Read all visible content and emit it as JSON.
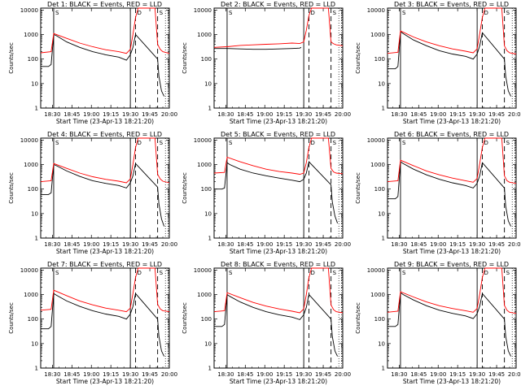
{
  "figure": {
    "title_format": "Det {det}: BLACK = Events, RED = LLD",
    "xlabel": "Start Time (23-Apr-13 18:21:20)",
    "ylabel": "Counts/sec"
  },
  "axes": {
    "x_tick_labels": [
      "18:30",
      "18:45",
      "19:00",
      "19:15",
      "19:30",
      "19:45",
      "20:00"
    ],
    "x_tick_minutes": [
      9,
      24,
      39,
      54,
      69,
      84,
      99
    ],
    "x_range_minutes": [
      0,
      99
    ],
    "y_tick_labels": [
      "1",
      "10",
      "100",
      "1000",
      "10000"
    ],
    "y_tick_values": [
      1,
      10,
      100,
      1000,
      10000
    ],
    "y_range": [
      1,
      12000
    ],
    "y_scale": "log",
    "markers": [
      "S",
      "D",
      "S"
    ]
  },
  "colors": {
    "events": "#000000",
    "lld": "#ff0000",
    "axis": "#000000"
  },
  "chart_data": [
    {
      "type": "line",
      "det": "1",
      "title": "Det 1: BLACK = Events, RED = LLD",
      "xlabel": "Start Time (23-Apr-13 18:21:20)",
      "ylabel": "Counts/sec",
      "x_unit": "minutes after 18:21:20",
      "vlines": [
        {
          "x": 10,
          "style": "solid"
        },
        {
          "x": 69,
          "style": "solid"
        },
        {
          "x": 73,
          "style": "dashed"
        },
        {
          "x": 90,
          "style": "dashed"
        }
      ],
      "series": [
        {
          "name": "Events",
          "color": "#000000",
          "x": [
            0,
            6,
            8,
            10,
            12,
            20,
            30,
            40,
            50,
            60,
            66,
            69,
            71,
            73,
            90,
            91,
            93,
            95
          ],
          "y": [
            50,
            50,
            60,
            1000,
            900,
            500,
            300,
            200,
            150,
            120,
            90,
            150,
            300,
            1000,
            100,
            20,
            5,
            3
          ]
        },
        {
          "name": "LLD",
          "color": "#ff0000",
          "x": [
            0,
            8,
            10,
            20,
            30,
            40,
            50,
            60,
            66,
            69,
            71,
            73,
            75,
            88,
            90,
            92,
            94,
            99
          ],
          "y": [
            180,
            200,
            1100,
            700,
            450,
            320,
            240,
            200,
            170,
            250,
            1000,
            5000,
            12000,
            12000,
            400,
            250,
            200,
            170
          ]
        }
      ]
    },
    {
      "type": "line",
      "det": "2",
      "title": "Det 2: BLACK = Events, RED = LLD",
      "xlabel": "Start Time (23-Apr-13 18:21:20)",
      "ylabel": "Counts/sec",
      "x_unit": "minutes after 18:21:20",
      "vlines": [
        {
          "x": 10,
          "style": "solid"
        },
        {
          "x": 69,
          "style": "solid"
        },
        {
          "x": 73,
          "style": "dashed"
        },
        {
          "x": 90,
          "style": "dashed"
        }
      ],
      "series": [
        {
          "name": "Events",
          "color": "#000000",
          "x": [
            0,
            10,
            20,
            30,
            40,
            50,
            60,
            66,
            67
          ],
          "y": [
            270,
            270,
            260,
            250,
            250,
            260,
            270,
            280,
            300
          ]
        },
        {
          "name": "LLD",
          "color": "#ff0000",
          "x": [
            0,
            10,
            20,
            30,
            40,
            50,
            60,
            66,
            69,
            71,
            73,
            75,
            88,
            90,
            92,
            94,
            99
          ],
          "y": [
            300,
            320,
            360,
            380,
            400,
            420,
            450,
            430,
            500,
            1500,
            6000,
            12000,
            12000,
            500,
            420,
            380,
            350
          ]
        }
      ]
    },
    {
      "type": "line",
      "det": "3",
      "title": "Det 3: BLACK = Events, RED = LLD",
      "xlabel": "Start Time (23-Apr-13 18:21:20)",
      "ylabel": "Counts/sec",
      "x_unit": "minutes after 18:21:20",
      "vlines": [
        {
          "x": 10,
          "style": "solid"
        },
        {
          "x": 69,
          "style": "solid"
        },
        {
          "x": 73,
          "style": "dashed"
        },
        {
          "x": 90,
          "style": "dashed"
        }
      ],
      "series": [
        {
          "name": "Events",
          "color": "#000000",
          "x": [
            0,
            6,
            8,
            10,
            12,
            20,
            30,
            40,
            50,
            60,
            66,
            69,
            71,
            73,
            90,
            91,
            93,
            95
          ],
          "y": [
            40,
            40,
            50,
            1300,
            1100,
            600,
            350,
            220,
            160,
            130,
            100,
            160,
            350,
            1200,
            100,
            20,
            5,
            3
          ]
        },
        {
          "name": "LLD",
          "color": "#ff0000",
          "x": [
            0,
            8,
            10,
            20,
            30,
            40,
            50,
            60,
            66,
            69,
            71,
            73,
            75,
            88,
            90,
            92,
            94,
            99
          ],
          "y": [
            170,
            190,
            1400,
            800,
            500,
            350,
            260,
            210,
            180,
            260,
            1100,
            5000,
            12000,
            12000,
            350,
            220,
            180,
            160
          ]
        }
      ]
    },
    {
      "type": "line",
      "det": "4",
      "title": "Det 4: BLACK = Events, RED = LLD",
      "xlabel": "Start Time (23-Apr-13 18:21:20)",
      "ylabel": "Counts/sec",
      "x_unit": "minutes after 18:21:20",
      "vlines": [
        {
          "x": 10,
          "style": "solid"
        },
        {
          "x": 69,
          "style": "solid"
        },
        {
          "x": 73,
          "style": "dashed"
        },
        {
          "x": 90,
          "style": "dashed"
        }
      ],
      "series": [
        {
          "name": "Events",
          "color": "#000000",
          "x": [
            0,
            6,
            8,
            10,
            12,
            20,
            30,
            40,
            50,
            60,
            66,
            69,
            71,
            73,
            90,
            91,
            93,
            95
          ],
          "y": [
            60,
            60,
            70,
            1000,
            900,
            550,
            330,
            220,
            170,
            140,
            110,
            180,
            350,
            1100,
            120,
            25,
            6,
            3
          ]
        },
        {
          "name": "LLD",
          "color": "#ff0000",
          "x": [
            0,
            8,
            10,
            20,
            30,
            40,
            50,
            60,
            66,
            69,
            71,
            73,
            75,
            88,
            90,
            92,
            94,
            99
          ],
          "y": [
            200,
            220,
            1100,
            700,
            450,
            320,
            250,
            210,
            180,
            260,
            1000,
            5000,
            12000,
            12000,
            400,
            260,
            210,
            180
          ]
        }
      ]
    },
    {
      "type": "line",
      "det": "5",
      "title": "Det 5: BLACK = Events, RED = LLD",
      "xlabel": "Start Time (23-Apr-13 18:21:20)",
      "ylabel": "Counts/sec",
      "x_unit": "minutes after 18:21:20",
      "vlines": [
        {
          "x": 10,
          "style": "solid"
        },
        {
          "x": 69,
          "style": "solid"
        },
        {
          "x": 73,
          "style": "dashed"
        },
        {
          "x": 90,
          "style": "dashed"
        }
      ],
      "series": [
        {
          "name": "Events",
          "color": "#000000",
          "x": [
            0,
            6,
            8,
            10,
            12,
            20,
            30,
            40,
            50,
            60,
            66,
            69,
            71,
            73,
            90,
            91,
            93,
            95
          ],
          "y": [
            100,
            100,
            110,
            1200,
            1000,
            650,
            450,
            350,
            280,
            230,
            200,
            250,
            450,
            1300,
            150,
            30,
            8,
            4
          ]
        },
        {
          "name": "LLD",
          "color": "#ff0000",
          "x": [
            0,
            8,
            10,
            20,
            30,
            40,
            50,
            60,
            66,
            69,
            71,
            73,
            75,
            88,
            90,
            92,
            94,
            99
          ],
          "y": [
            450,
            480,
            2000,
            1300,
            900,
            650,
            520,
            450,
            400,
            450,
            1200,
            5000,
            12000,
            12000,
            700,
            500,
            450,
            420
          ]
        }
      ]
    },
    {
      "type": "line",
      "det": "6",
      "title": "Det 6: BLACK = Events, RED = LLD",
      "xlabel": "Start Time (23-Apr-13 18:21:20)",
      "ylabel": "Counts/sec",
      "x_unit": "minutes after 18:21:20",
      "vlines": [
        {
          "x": 10,
          "style": "solid"
        },
        {
          "x": 69,
          "style": "solid"
        },
        {
          "x": 73,
          "style": "dashed"
        },
        {
          "x": 90,
          "style": "dashed"
        }
      ],
      "series": [
        {
          "name": "Events",
          "color": "#000000",
          "x": [
            0,
            6,
            8,
            10,
            12,
            20,
            30,
            40,
            50,
            60,
            66,
            69,
            71,
            73,
            90,
            91,
            93,
            95
          ],
          "y": [
            40,
            40,
            50,
            1300,
            1100,
            650,
            380,
            250,
            180,
            140,
            110,
            170,
            350,
            1200,
            110,
            20,
            5,
            3
          ]
        },
        {
          "name": "LLD",
          "color": "#ff0000",
          "x": [
            0,
            8,
            10,
            20,
            30,
            40,
            50,
            60,
            66,
            69,
            71,
            73,
            75,
            88,
            90,
            92,
            94,
            99
          ],
          "y": [
            200,
            220,
            1500,
            900,
            550,
            380,
            280,
            220,
            190,
            270,
            1100,
            5000,
            12000,
            12000,
            350,
            220,
            190,
            170
          ]
        }
      ]
    },
    {
      "type": "line",
      "det": "7",
      "title": "Det 7: BLACK = Events, RED = LLD",
      "xlabel": "Start Time (23-Apr-13 18:21:20)",
      "ylabel": "Counts/sec",
      "x_unit": "minutes after 18:21:20",
      "vlines": [
        {
          "x": 10,
          "style": "solid"
        },
        {
          "x": 69,
          "style": "solid"
        },
        {
          "x": 73,
          "style": "dashed"
        },
        {
          "x": 90,
          "style": "dashed"
        }
      ],
      "series": [
        {
          "name": "Events",
          "color": "#000000",
          "x": [
            0,
            6,
            8,
            10,
            12,
            20,
            30,
            40,
            50,
            60,
            66,
            69,
            71,
            73,
            90,
            91,
            93,
            95
          ],
          "y": [
            40,
            40,
            50,
            1100,
            950,
            550,
            330,
            220,
            160,
            130,
            100,
            160,
            330,
            1100,
            100,
            20,
            5,
            3
          ]
        },
        {
          "name": "LLD",
          "color": "#ff0000",
          "x": [
            0,
            8,
            10,
            20,
            30,
            40,
            50,
            60,
            66,
            69,
            71,
            73,
            75,
            88,
            90,
            92,
            94,
            99
          ],
          "y": [
            230,
            250,
            1500,
            900,
            550,
            380,
            280,
            230,
            200,
            280,
            1100,
            5000,
            12000,
            12000,
            400,
            260,
            220,
            200
          ]
        }
      ]
    },
    {
      "type": "line",
      "det": "8",
      "title": "Det 8: BLACK = Events, RED = LLD",
      "xlabel": "Start Time (23-Apr-13 18:21:20)",
      "ylabel": "Counts/sec",
      "x_unit": "minutes after 18:21:20",
      "vlines": [
        {
          "x": 10,
          "style": "solid"
        },
        {
          "x": 69,
          "style": "solid"
        },
        {
          "x": 73,
          "style": "dashed"
        },
        {
          "x": 90,
          "style": "dashed"
        }
      ],
      "series": [
        {
          "name": "Events",
          "color": "#000000",
          "x": [
            0,
            6,
            8,
            10,
            12,
            20,
            30,
            40,
            50,
            60,
            66,
            69,
            71,
            73,
            90,
            91,
            93,
            95
          ],
          "y": [
            50,
            50,
            60,
            1000,
            850,
            500,
            300,
            200,
            150,
            120,
            95,
            150,
            300,
            1000,
            100,
            20,
            5,
            3
          ]
        },
        {
          "name": "LLD",
          "color": "#ff0000",
          "x": [
            0,
            8,
            10,
            20,
            30,
            40,
            50,
            60,
            66,
            69,
            71,
            73,
            75,
            88,
            90,
            92,
            94,
            99
          ],
          "y": [
            200,
            220,
            1200,
            750,
            480,
            340,
            260,
            210,
            180,
            260,
            1000,
            5000,
            12000,
            12000,
            380,
            240,
            200,
            180
          ]
        }
      ]
    },
    {
      "type": "line",
      "det": "9",
      "title": "Det 9: BLACK = Events, RED = LLD",
      "xlabel": "Start Time (23-Apr-13 18:21:20)",
      "ylabel": "Counts/sec",
      "x_unit": "minutes after 18:21:20",
      "vlines": [
        {
          "x": 10,
          "style": "solid"
        },
        {
          "x": 69,
          "style": "solid"
        },
        {
          "x": 73,
          "style": "dashed"
        },
        {
          "x": 90,
          "style": "dashed"
        }
      ],
      "series": [
        {
          "name": "Events",
          "color": "#000000",
          "x": [
            0,
            6,
            8,
            10,
            12,
            20,
            30,
            40,
            50,
            60,
            66,
            69,
            71,
            73,
            90,
            91,
            93,
            95
          ],
          "y": [
            50,
            50,
            60,
            1200,
            1000,
            600,
            350,
            230,
            170,
            135,
            105,
            165,
            340,
            1100,
            100,
            20,
            5,
            3
          ]
        },
        {
          "name": "LLD",
          "color": "#ff0000",
          "x": [
            0,
            8,
            10,
            20,
            30,
            40,
            50,
            60,
            66,
            69,
            71,
            73,
            75,
            88,
            90,
            92,
            94,
            99
          ],
          "y": [
            190,
            210,
            1300,
            800,
            500,
            350,
            270,
            220,
            190,
            270,
            1050,
            5000,
            12000,
            12000,
            360,
            230,
            190,
            170
          ]
        }
      ]
    }
  ]
}
